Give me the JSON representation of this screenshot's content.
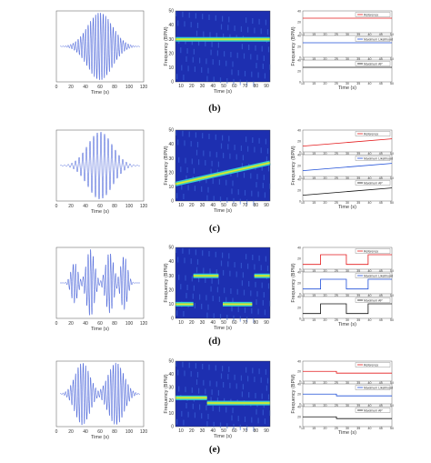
{
  "panels": [
    {
      "label": "(b)",
      "waveform": {
        "xlabel": "Time (s)",
        "xticks": [
          "0",
          "20",
          "40",
          "60",
          "80",
          "100",
          "120"
        ],
        "env": "single",
        "peak": 0.95
      },
      "spectrogram": {
        "xlabel": "Time (s)",
        "ylabel": "Frequency (BPM)",
        "xticks": [
          "10",
          "20",
          "30",
          "40",
          "50",
          "60",
          "70",
          "80",
          "90"
        ],
        "yticks": [
          "0",
          "10",
          "20",
          "30",
          "40",
          "50"
        ],
        "ylim": [
          0,
          50
        ],
        "tracks": [
          {
            "t": [
              5,
              95
            ],
            "f": [
              30,
              30
            ]
          }
        ]
      },
      "estimates": {
        "xticks": [
          "10",
          "15",
          "20",
          "25",
          "30",
          "35",
          "40",
          "45",
          "50"
        ],
        "ylabel": "Frequency (BPM)",
        "xlabel": "Time (s)",
        "yticks": [
          "40",
          "30",
          "20",
          "10",
          "0"
        ],
        "legend": [
          "Reference",
          "Maximum Likelihood",
          "Maximum AP"
        ],
        "colors": [
          "#e41a1c",
          "#1f4fd8",
          "#111111"
        ],
        "series": [
          {
            "t": [
              5,
              50
            ],
            "v": [
              30,
              30
            ]
          },
          {
            "t": [
              5,
              50
            ],
            "v": [
              30,
              30
            ]
          },
          {
            "t": [
              5,
              50
            ],
            "v": [
              30,
              30
            ]
          }
        ]
      }
    },
    {
      "label": "(c)",
      "waveform": {
        "xlabel": "Time (s)",
        "xticks": [
          "0",
          "20",
          "40",
          "60",
          "80",
          "100",
          "120"
        ],
        "env": "single",
        "peak": 0.95
      },
      "spectrogram": {
        "xlabel": "Time (s)",
        "ylabel": "Frequency (BPM)",
        "xticks": [
          "10",
          "20",
          "30",
          "40",
          "50",
          "60",
          "70",
          "80",
          "90"
        ],
        "yticks": [
          "0",
          "10",
          "20",
          "30",
          "40",
          "50"
        ],
        "ylim": [
          0,
          50
        ],
        "tracks": [
          {
            "t": [
              5,
              95
            ],
            "f": [
              12,
              27
            ]
          }
        ]
      },
      "estimates": {
        "xticks": [
          "10",
          "15",
          "20",
          "25",
          "30",
          "35",
          "40",
          "45",
          "50"
        ],
        "ylabel": "Frequency (BPM)",
        "xlabel": "Time (s)",
        "yticks": [
          "40",
          "30",
          "20",
          "10",
          "0"
        ],
        "legend": [
          "Reference",
          "Maximum Likelihood",
          "Maximum AP"
        ],
        "colors": [
          "#e41a1c",
          "#1f4fd8",
          "#111111"
        ],
        "series": [
          {
            "t": [
              5,
              50
            ],
            "v": [
              12,
              27
            ]
          },
          {
            "t": [
              5,
              50
            ],
            "v": [
              12,
              27
            ]
          },
          {
            "t": [
              5,
              50
            ],
            "v": [
              12,
              27
            ]
          }
        ]
      }
    },
    {
      "label": "(d)",
      "waveform": {
        "xlabel": "Time (s)",
        "xticks": [
          "0",
          "20",
          "40",
          "60",
          "80",
          "100",
          "120"
        ],
        "env": "multi",
        "peak": 0.95
      },
      "spectrogram": {
        "xlabel": "Time (s)",
        "ylabel": "Frequency (BPM)",
        "xticks": [
          "10",
          "20",
          "30",
          "40",
          "50",
          "60",
          "70",
          "80",
          "90"
        ],
        "yticks": [
          "0",
          "10",
          "20",
          "30",
          "40",
          "50"
        ],
        "ylim": [
          0,
          50
        ],
        "tracks": [
          {
            "t": [
              5,
              22
            ],
            "f": [
              10,
              10
            ]
          },
          {
            "t": [
              22,
              46
            ],
            "f": [
              30,
              30
            ]
          },
          {
            "t": [
              50,
              78
            ],
            "f": [
              10,
              10
            ]
          },
          {
            "t": [
              80,
              95
            ],
            "f": [
              30,
              30
            ]
          }
        ]
      },
      "estimates": {
        "xticks": [
          "10",
          "15",
          "20",
          "25",
          "30",
          "35",
          "40",
          "45",
          "50"
        ],
        "ylabel": "Frequency (BPM)",
        "xlabel": "Time (s)",
        "yticks": [
          "40",
          "30",
          "20",
          "10",
          "0"
        ],
        "legend": [
          "Reference",
          "Maximum Likelihood",
          "Maximum AP"
        ],
        "colors": [
          "#e41a1c",
          "#1f4fd8",
          "#111111"
        ],
        "series": [
          {
            "steps": [
              [
                5,
                10
              ],
              [
                14,
                30
              ],
              [
                27,
                10
              ],
              [
                38,
                30
              ],
              [
                50,
                30
              ]
            ]
          },
          {
            "steps": [
              [
                5,
                10
              ],
              [
                14,
                30
              ],
              [
                27,
                10
              ],
              [
                38,
                30
              ],
              [
                50,
                30
              ]
            ]
          },
          {
            "steps": [
              [
                5,
                10
              ],
              [
                14,
                30
              ],
              [
                27,
                10
              ],
              [
                38,
                30
              ],
              [
                50,
                30
              ]
            ]
          }
        ]
      }
    },
    {
      "label": "(e)",
      "waveform": {
        "xlabel": "Time (s)",
        "xticks": [
          "0",
          "20",
          "40",
          "60",
          "80",
          "100",
          "120"
        ],
        "env": "double",
        "peak": 0.95
      },
      "spectrogram": {
        "xlabel": "Time (s)",
        "ylabel": "Frequency (BPM)",
        "xticks": [
          "10",
          "20",
          "30",
          "40",
          "50",
          "60",
          "70",
          "80",
          "90"
        ],
        "yticks": [
          "0",
          "10",
          "20",
          "30",
          "40",
          "50"
        ],
        "ylim": [
          0,
          50
        ],
        "tracks": [
          {
            "t": [
              5,
              35
            ],
            "f": [
              22,
              22
            ]
          },
          {
            "t": [
              35,
              95
            ],
            "f": [
              18,
              18
            ]
          }
        ]
      },
      "estimates": {
        "xticks": [
          "10",
          "15",
          "20",
          "25",
          "30",
          "35",
          "40",
          "45",
          "50"
        ],
        "ylabel": "Frequency (BPM)",
        "xlabel": "Time (s)",
        "yticks": [
          "40",
          "30",
          "20",
          "10",
          "0"
        ],
        "legend": [
          "Reference",
          "Maximum Likelihood",
          "Maximum AP"
        ],
        "colors": [
          "#e41a1c",
          "#1f4fd8",
          "#111111"
        ],
        "series": [
          {
            "steps": [
              [
                5,
                22
              ],
              [
                22,
                18
              ],
              [
                50,
                18
              ]
            ]
          },
          {
            "steps": [
              [
                5,
                22
              ],
              [
                22,
                18
              ],
              [
                50,
                18
              ]
            ]
          },
          {
            "steps": [
              [
                5,
                22
              ],
              [
                22,
                18
              ],
              [
                50,
                18
              ]
            ]
          }
        ]
      }
    }
  ]
}
